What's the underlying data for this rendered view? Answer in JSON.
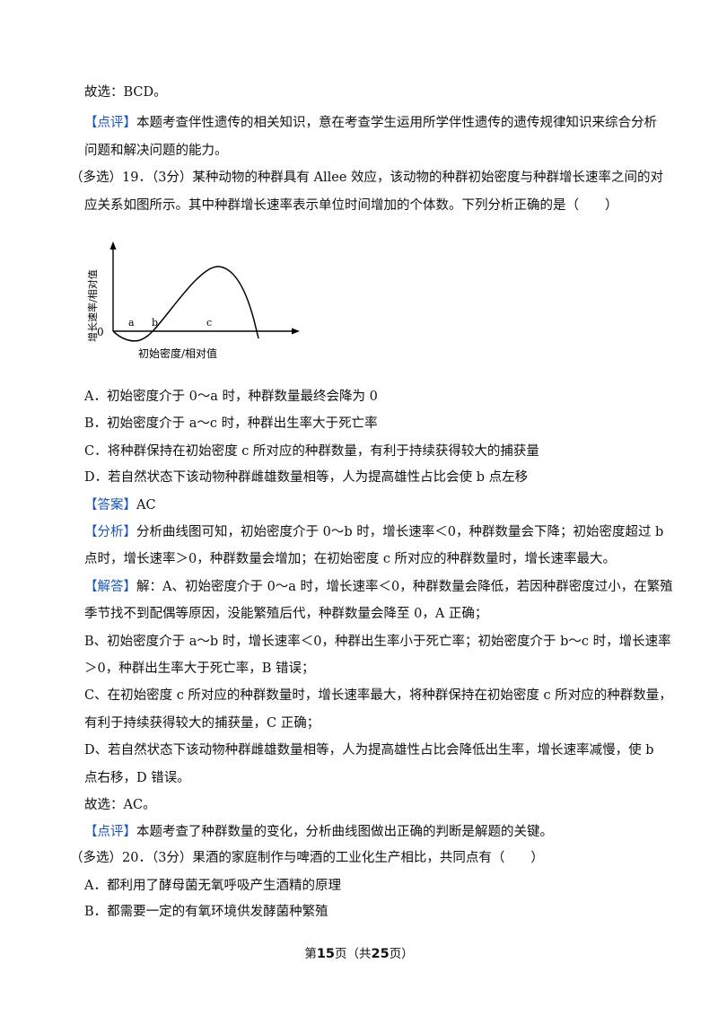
{
  "prev": {
    "conclusion": "故选：BCD。",
    "comment_tag": "【点评】",
    "comment_line1": "本题考查伴性遗传的相关知识，意在考查学生运用所学伴性遗传的遗传规律知识来综合分析",
    "comment_line2": "问题和解决问题的能力。"
  },
  "q19": {
    "stem_line1": "（多选）19．（3分）某种动物的种群具有 Allee 效应，该动物的种群初始密度与种群增长速率之间的对",
    "stem_line2": "应关系如图所示。其中种群增长速率表示单位时间增加的个体数。下列分析正确的是（　　）",
    "graph": {
      "ylabel": "增长速率/相对值",
      "xlabel": "初始密度/相对值",
      "origin": "0",
      "point_a": "a",
      "point_b": "b",
      "point_c": "c"
    },
    "options": {
      "A": "A．初始密度介于 0～a 时，种群数量最终会降为 0",
      "B": "B．初始密度介于 a～c 时，种群出生率大于死亡率",
      "C": "C．将种群保持在初始密度 c 所对应的种群数量，有利于持续获得较大的捕获量",
      "D": "D．若自然状态下该动物种群雌雄数量相等，人为提高雄性占比会使 b 点左移"
    },
    "answer_tag": "【答案】",
    "answer": "AC",
    "analysis_tag": "【分析】",
    "analysis_line1": "分析曲线图可知，初始密度介于 0～b 时，增长速率＜0，种群数量会下降；初始密度超过 b",
    "analysis_line2": "点时，增长速率＞0，种群数量会增加；在初始密度 c 所对应的种群数量时，增长速率最大。",
    "solution_tag": "【解答】",
    "solution_line1": "解：A、初始密度介于 0～a 时，增长速率＜0，种群数量会降低，若因种群密度过小，在繁殖",
    "solution_line2": "季节找不到配偶等原因，没能繁殖后代，种群数量会降至 0，A 正确；",
    "solution_line3": "B、初始密度介于 a～b 时，增长速率＜0，种群出生率小于死亡率；初始密度介于 b～c 时，增长速率",
    "solution_line4": "＞0，种群出生率大于死亡率，B 错误；",
    "solution_line5": "C、在初始密度 c 所对应的种群数量时，增长速率最大，将种群保持在初始密度 c 所对应的种群数量，",
    "solution_line6": "有利于持续获得较大的捕获量，C 正确；",
    "solution_line7": "D、若自然状态下该动物种群雌雄数量相等，人为提高雄性占比会降低出生率，增长速率减慢，使 b",
    "solution_line8": "点右移，D 错误。",
    "conclusion": "故选：AC。",
    "comment_tag": "【点评】",
    "comment": "本题考查了种群数量的变化，分析曲线图做出正确的判断是解题的关键。"
  },
  "q20": {
    "stem": "（多选）20．（3分）果酒的家庭制作与啤酒的工业化生产相比，共同点有（　　）",
    "option_A": "A．都利用了酵母菌无氧呼吸产生酒精的原理",
    "option_B": "B．都需要一定的有氧环境供发酵菌种繁殖"
  },
  "footer": {
    "prefix": "第",
    "page": "15",
    "mid": "页（共",
    "total": "25",
    "suffix": "页）"
  }
}
